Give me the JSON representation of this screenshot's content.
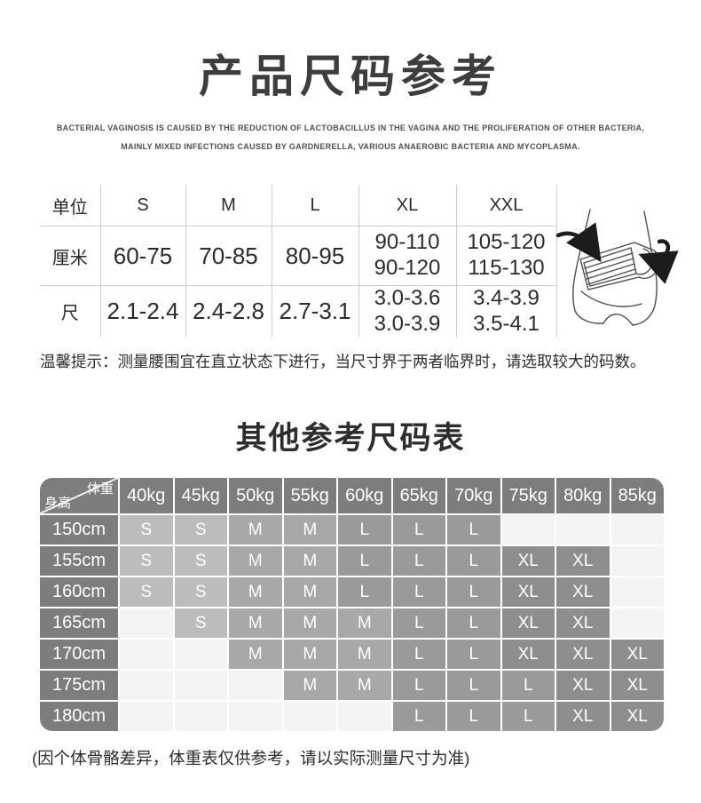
{
  "header": {
    "title": "产品尺码参考",
    "subtitle_lines": [
      "BACTERIAL VAGINOSIS IS CAUSED BY THE REDUCTION OF LACTOBACILLUS IN THE VAGINA AND THE PROLIFERATION OF OTHER BACTERIA,",
      "MAINLY MIXED INFECTIONS CAUSED BY GARDNERELLA, VARIOUS ANAEROBIC BACTERIA AND MYCOPLASMA."
    ]
  },
  "size_table": {
    "columns": [
      "单位",
      "S",
      "M",
      "L",
      "XL",
      "XXL"
    ],
    "rows": [
      {
        "label": "厘米",
        "values": [
          "60-75",
          "70-85",
          "80-95",
          "90-110\n90-120",
          "105-120\n115-130"
        ]
      },
      {
        "label": "尺",
        "values": [
          "2.1-2.4",
          "2.4-2.8",
          "2.7-3.1",
          "3.0-3.6\n3.0-3.9",
          "3.4-3.9\n3.5-4.1"
        ]
      }
    ]
  },
  "illustration": {
    "name": "waist-belt-line-drawing"
  },
  "tip": "温馨提示：测量腰围宜在直立状态下进行，当尺寸界于两者临界时，请选取较大的码数。",
  "grid_section": {
    "title": "其他参考尺码表",
    "corner": {
      "top_label": "体重",
      "bottom_label": "身高"
    },
    "weights": [
      "40kg",
      "45kg",
      "50kg",
      "55kg",
      "60kg",
      "65kg",
      "70kg",
      "75kg",
      "80kg",
      "85kg"
    ],
    "heights": [
      "150cm",
      "155cm",
      "160cm",
      "165cm",
      "170cm",
      "175cm",
      "180cm"
    ],
    "cells": [
      [
        "S",
        "S",
        "M",
        "M",
        "L",
        "L",
        "L",
        "",
        "",
        ""
      ],
      [
        "S",
        "S",
        "M",
        "M",
        "L",
        "L",
        "L",
        "XL",
        "XL",
        ""
      ],
      [
        "S",
        "S",
        "M",
        "M",
        "L",
        "L",
        "L",
        "XL",
        "XL",
        ""
      ],
      [
        "",
        "S",
        "M",
        "M",
        "M",
        "L",
        "L",
        "XL",
        "XL",
        ""
      ],
      [
        "",
        "",
        "M",
        "M",
        "M",
        "L",
        "L",
        "XL",
        "XL",
        "XL"
      ],
      [
        "",
        "",
        "",
        "M",
        "M",
        "L",
        "L",
        "L",
        "XL",
        "XL"
      ],
      [
        "",
        "",
        "",
        "",
        "",
        "L",
        "L",
        "L",
        "XL",
        "XL"
      ]
    ],
    "size_colors": {
      "S": "#bcbcbc",
      "M": "#a8a8a8",
      "L": "#9a9a9a",
      "XL": "#8e8e8e",
      "empty": "#f4f4f4",
      "header": "#7d7d7d"
    }
  },
  "footnote": "(因个体骨骼差异，体重表仅供参考，请以实际测量尺寸为准)"
}
